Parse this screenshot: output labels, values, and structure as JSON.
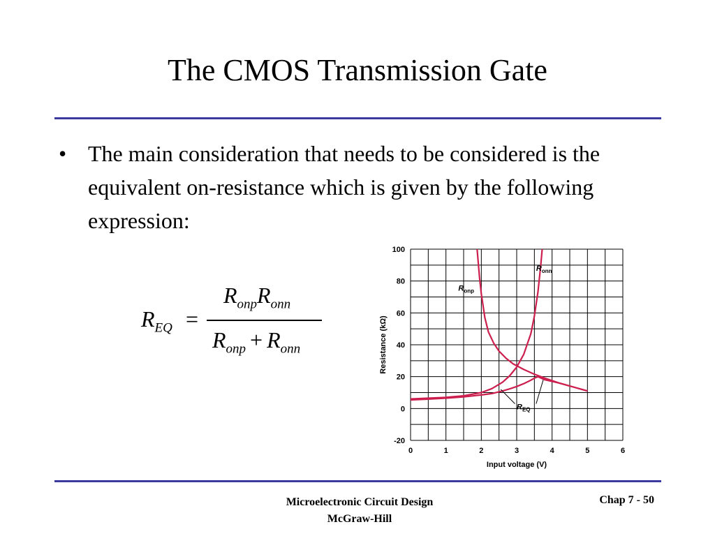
{
  "slide": {
    "title": "The CMOS Transmission Gate",
    "bullet": "•",
    "bullet_text": "The main consideration that needs to be considered is the equivalent on-resistance which is given by the following expression:"
  },
  "formula": {
    "lhs_symbol": "R",
    "lhs_sub": "EQ",
    "equals": "=",
    "num_a": "R",
    "num_a_sub": "onp",
    "num_b": "R",
    "num_b_sub": "onn",
    "den_a": "R",
    "den_a_sub": "onp",
    "plus": "+",
    "den_b": "R",
    "den_b_sub": "onn"
  },
  "chart_data": {
    "type": "line",
    "xlabel": "Input voltage (V)",
    "ylabel": "Resistance (kΩ)",
    "xlim": [
      0,
      6
    ],
    "ylim": [
      -20,
      100
    ],
    "xticks": [
      0,
      1,
      2,
      3,
      4,
      5,
      6
    ],
    "yticks": [
      -20,
      0,
      20,
      40,
      60,
      80,
      100
    ],
    "grid": true,
    "labels": {
      "ronp": "R",
      "ronp_sub": "onp",
      "ronn": "R",
      "ronn_sub": "onn",
      "req": "R",
      "req_sub": "EQ"
    },
    "series": [
      {
        "name": "Ronp",
        "x": [
          1.88,
          1.95,
          2.0,
          2.1,
          2.2,
          2.35,
          2.5,
          2.7,
          2.9,
          3.2,
          3.5,
          3.8,
          4.2,
          4.6,
          5.0
        ],
        "y": [
          100,
          82,
          72,
          57,
          48,
          41,
          36,
          31.5,
          28,
          24.5,
          21.5,
          19,
          16,
          13.5,
          11
        ]
      },
      {
        "name": "Ronn",
        "x": [
          0,
          0.5,
          1.0,
          1.5,
          2.0,
          2.3,
          2.6,
          2.8,
          3.0,
          3.2,
          3.4,
          3.5,
          3.6,
          3.68,
          3.72
        ],
        "y": [
          6,
          6.5,
          7,
          8,
          10,
          12.5,
          16.5,
          20.5,
          26,
          34,
          47,
          58,
          73,
          90,
          100
        ]
      },
      {
        "name": "REQ",
        "x": [
          0,
          0.5,
          1.0,
          1.5,
          2.0,
          2.3,
          2.6,
          2.8,
          3.0,
          3.2,
          3.4,
          3.5,
          3.6,
          3.8,
          4.2,
          4.6,
          5.0
        ],
        "y": [
          5.4,
          5.9,
          6.5,
          7.3,
          8.5,
          9.4,
          11,
          12.3,
          13.8,
          15.6,
          17.8,
          19,
          20,
          18,
          16,
          13.5,
          11
        ]
      }
    ]
  },
  "footer": {
    "line1": "Microelectronic Circuit Design",
    "line2": "McGraw-Hill",
    "right": "Chap 7 - 50"
  },
  "colors": {
    "rule": "#3a3aa0",
    "curve": "#cc1f4e"
  }
}
